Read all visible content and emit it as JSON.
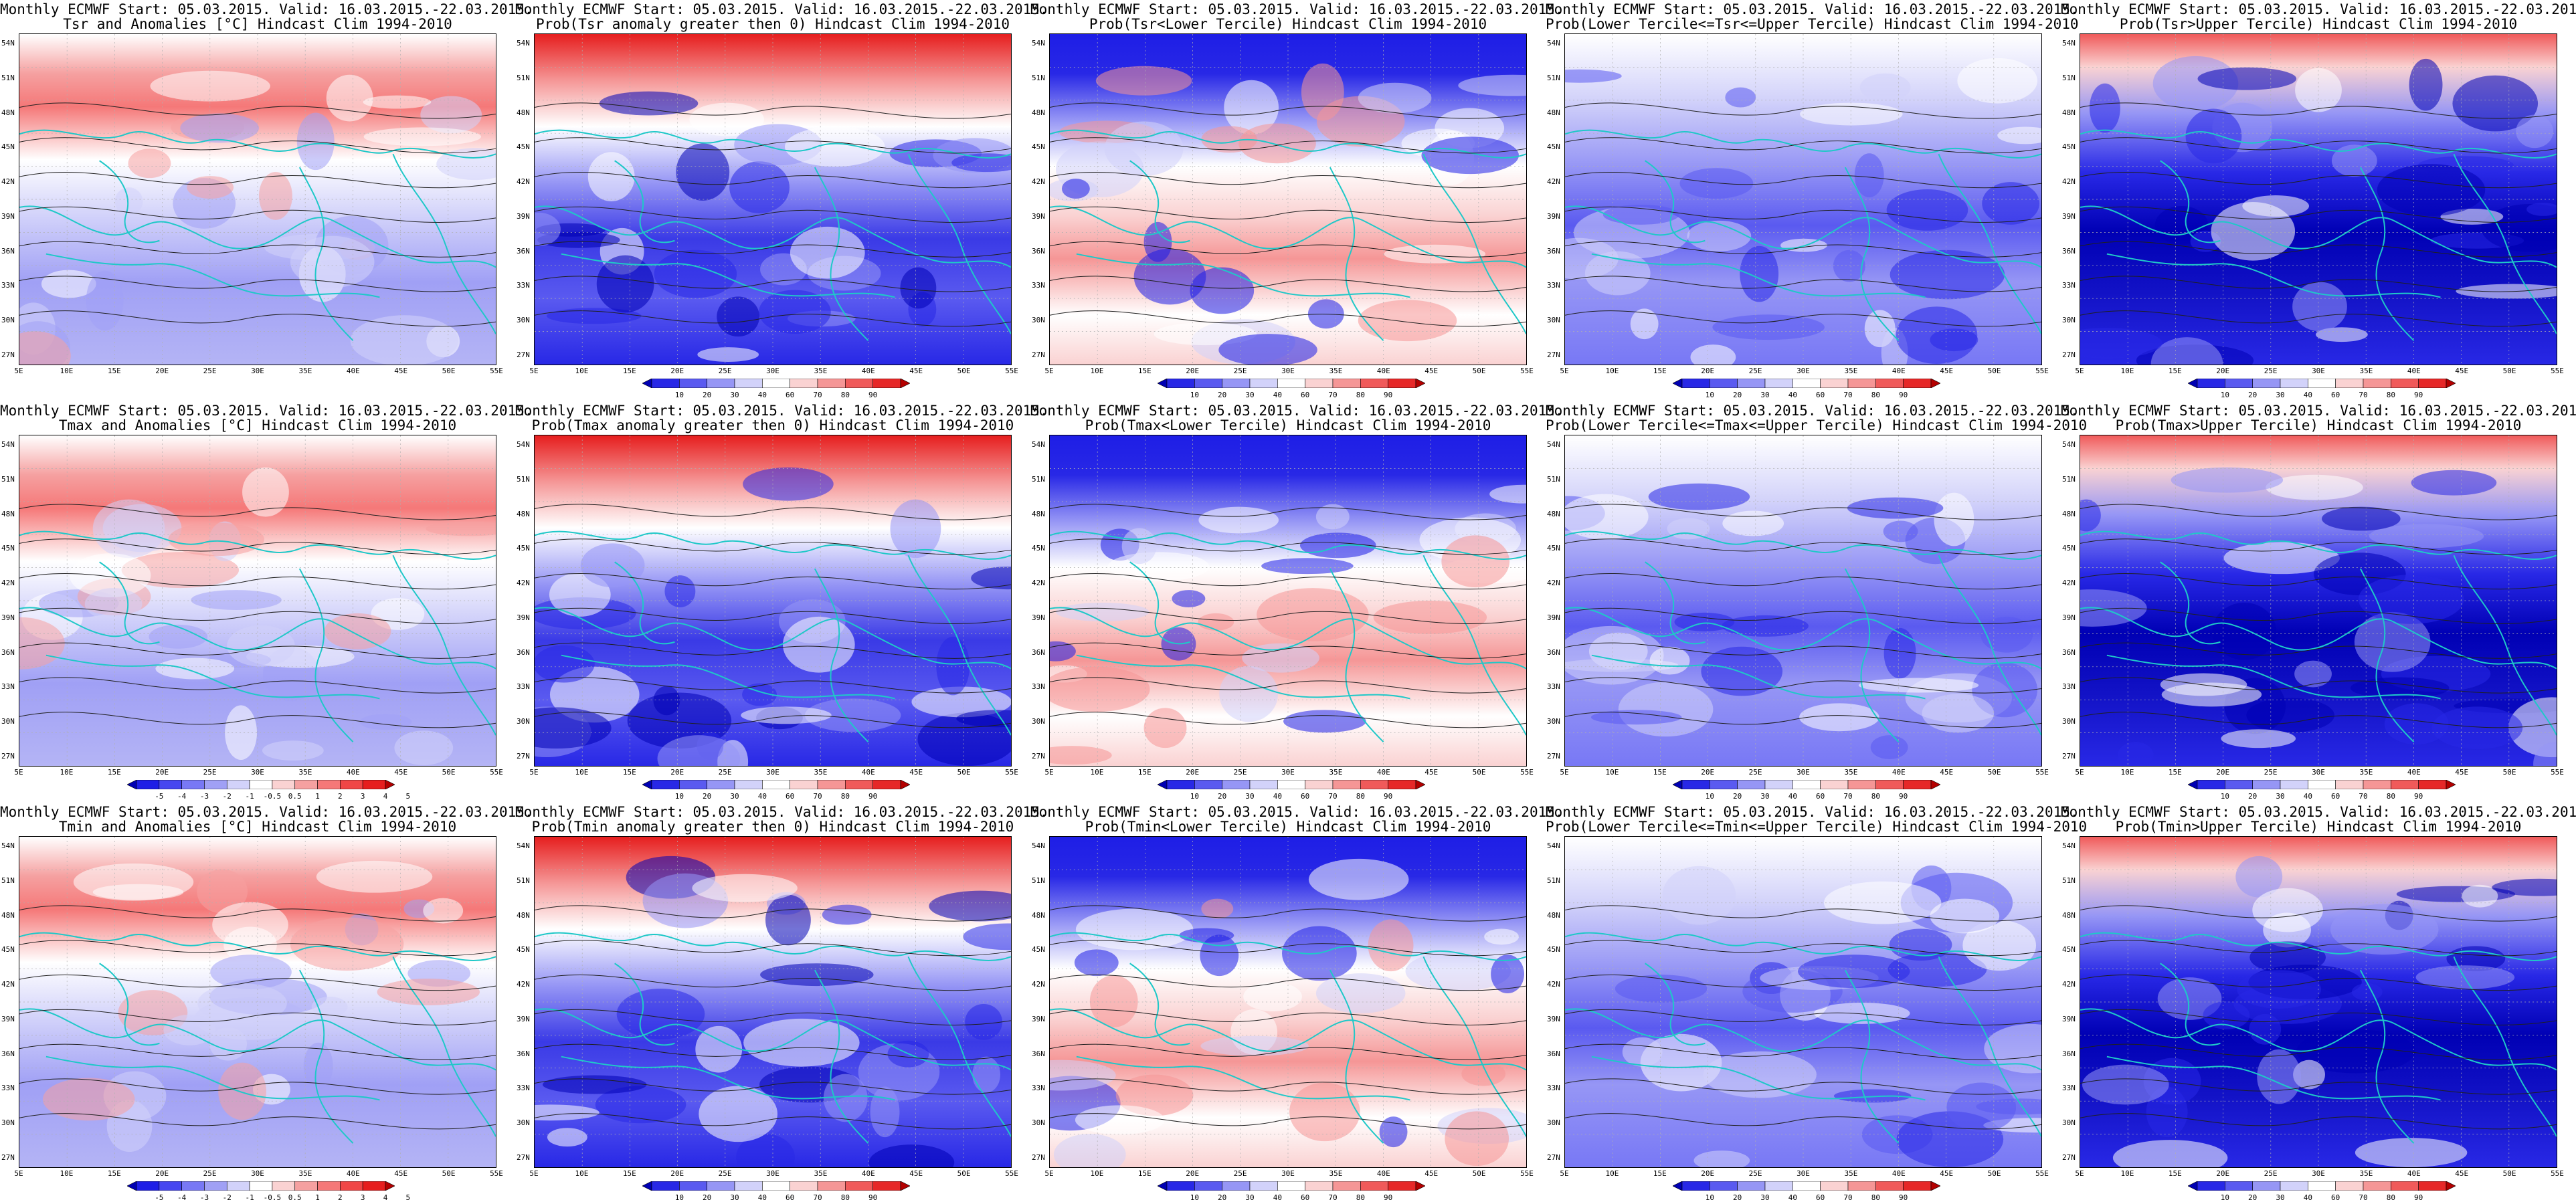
{
  "title_line1": "Monthly ECMWF Start: 05.03.2015. Valid: 16.03.2015.-22.03.2015.",
  "colorbars": {
    "anomaly": {
      "labels": [
        "-5",
        "-4",
        "-3",
        "-2",
        "-1",
        "-0.5",
        "0.5",
        "1",
        "2",
        "3",
        "4",
        "5"
      ],
      "colors": [
        "#0000b4",
        "#1e1ee6",
        "#4646f0",
        "#7878f5",
        "#a0a0f5",
        "#d2d2fa",
        "#ffffff",
        "#fad2d2",
        "#f5a0a0",
        "#f57878",
        "#f04646",
        "#e61e1e",
        "#b40000"
      ]
    },
    "probability": {
      "labels": [
        "10",
        "20",
        "30",
        "40",
        "60",
        "70",
        "80",
        "90"
      ],
      "colors": [
        "#0000b4",
        "#2828e6",
        "#5a5af0",
        "#9696f5",
        "#d2d2fa",
        "#ffffff",
        "#fad2d2",
        "#f59696",
        "#f05a5a",
        "#e62828",
        "#b40000"
      ]
    }
  },
  "axes": {
    "lat_labels": [
      "54N",
      "51N",
      "48N",
      "45N",
      "42N",
      "39N",
      "36N",
      "33N",
      "30N",
      "27N"
    ],
    "lon_labels": [
      "5E",
      "10E",
      "15E",
      "20E",
      "25E",
      "30E",
      "35E",
      "40E",
      "45E",
      "50E",
      "55E"
    ]
  },
  "panels": [
    {
      "title_line2": "Tsr and Anomalies [°C] Hindcast Clim 1994-2010",
      "colorbar": "none",
      "field": "anomaly"
    },
    {
      "title_line2": "Prob(Tsr anomaly greater then 0) Hindcast Clim 1994-2010",
      "colorbar": "probability",
      "field": "warm"
    },
    {
      "title_line2": "Prob(Tsr<Lower Tercile) Hindcast Clim 1994-2010",
      "colorbar": "probability",
      "field": "cold"
    },
    {
      "title_line2": "Prob(Lower Tercile<=Tsr<=Upper Tercile) Hindcast Clim 1994-2010",
      "colorbar": "probability",
      "field": "middle"
    },
    {
      "title_line2": "Prob(Tsr>Upper Tercile) Hindcast Clim 1994-2010",
      "colorbar": "probability",
      "field": "upper"
    },
    {
      "title_line2": "Tmax and Anomalies [°C] Hindcast Clim 1994-2010",
      "colorbar": "anomaly",
      "field": "anomaly"
    },
    {
      "title_line2": "Prob(Tmax anomaly greater then 0) Hindcast Clim 1994-2010",
      "colorbar": "probability",
      "field": "warm"
    },
    {
      "title_line2": "Prob(Tmax<Lower Tercile) Hindcast Clim 1994-2010",
      "colorbar": "probability",
      "field": "cold"
    },
    {
      "title_line2": "Prob(Lower Tercile<=Tmax<=Upper Tercile) Hindcast Clim 1994-2010",
      "colorbar": "probability",
      "field": "middle"
    },
    {
      "title_line2": "Prob(Tmax>Upper Tercile) Hindcast Clim 1994-2010",
      "colorbar": "probability",
      "field": "upper"
    },
    {
      "title_line2": "Tmin and Anomalies [°C] Hindcast Clim 1994-2010",
      "colorbar": "anomaly",
      "field": "anomaly"
    },
    {
      "title_line2": "Prob(Tmin anomaly greater then 0) Hindcast Clim 1994-2010",
      "colorbar": "probability",
      "field": "warm"
    },
    {
      "title_line2": "Prob(Tmin<Lower Tercile) Hindcast Clim 1994-2010",
      "colorbar": "probability",
      "field": "cold"
    },
    {
      "title_line2": "Prob(Lower Tercile<=Tmin<=Upper Tercile) Hindcast Clim 1994-2010",
      "colorbar": "probability",
      "field": "middle"
    },
    {
      "title_line2": "Prob(Tmin>Upper Tercile) Hindcast Clim 1994-2010",
      "colorbar": "probability",
      "field": "upper"
    }
  ]
}
